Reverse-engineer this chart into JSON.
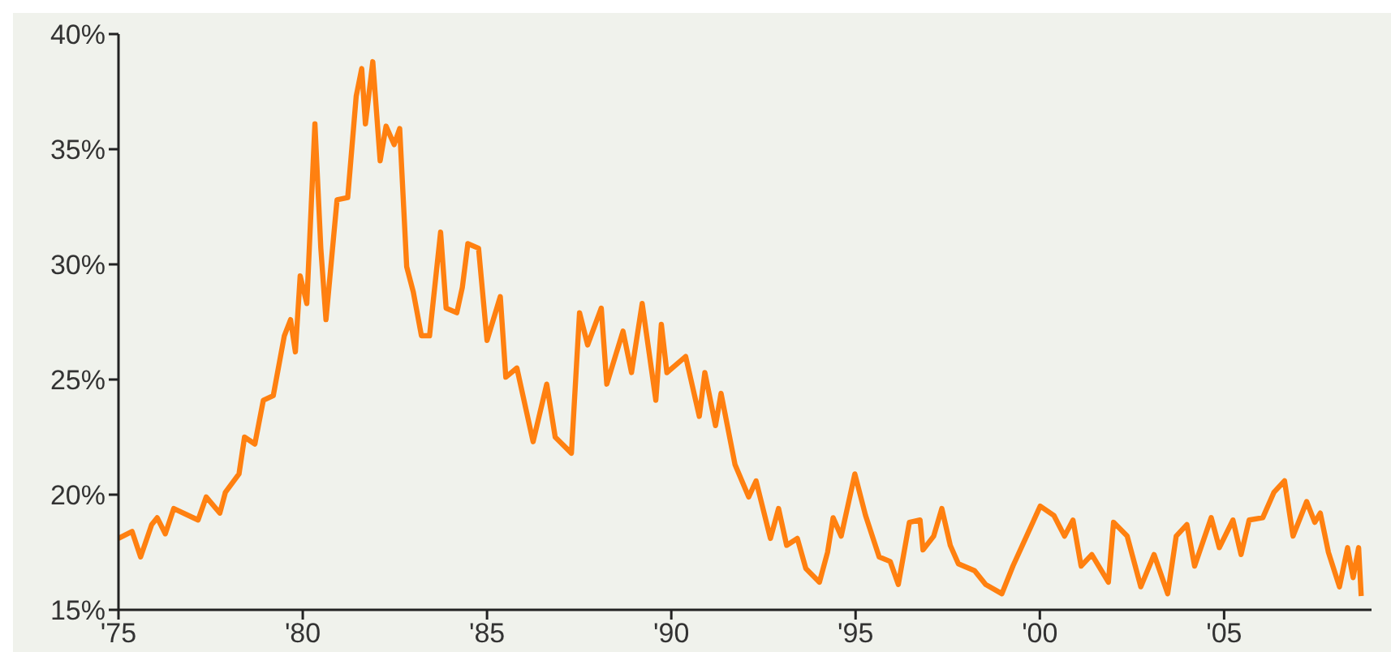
{
  "chart_data": {
    "type": "line",
    "grid": false,
    "marker": "none",
    "line_style": "solid",
    "xlim": [
      1975,
      2009
    ],
    "xticks": [
      {
        "value": 1975,
        "label": "'75"
      },
      {
        "value": 1980,
        "label": "'80"
      },
      {
        "value": 1985,
        "label": "'85"
      },
      {
        "value": 1990,
        "label": "'90"
      },
      {
        "value": 1995,
        "label": "'95"
      },
      {
        "value": 2000,
        "label": "'00"
      },
      {
        "value": 2005,
        "label": "'05"
      }
    ],
    "ylim": [
      15,
      40
    ],
    "yticks": [
      {
        "value": 15,
        "label": "15%"
      },
      {
        "value": 20,
        "label": "20%"
      },
      {
        "value": 25,
        "label": "25%"
      },
      {
        "value": 30,
        "label": "30%"
      },
      {
        "value": 35,
        "label": "35%"
      },
      {
        "value": 40,
        "label": "40%"
      }
    ],
    "series": [
      {
        "color": "#ff8010",
        "x": [
          1975.0,
          1975.37,
          1975.6,
          1975.9,
          1976.05,
          1976.27,
          1976.5,
          1977.16,
          1977.38,
          1977.75,
          1977.9,
          1978.27,
          1978.42,
          1978.7,
          1978.93,
          1979.2,
          1979.5,
          1979.67,
          1979.8,
          1979.93,
          1980.11,
          1980.33,
          1980.49,
          1980.63,
          1980.78,
          1980.93,
          1981.22,
          1981.45,
          1981.6,
          1981.7,
          1981.9,
          1982.1,
          1982.26,
          1982.48,
          1982.63,
          1982.82,
          1983.0,
          1983.22,
          1983.44,
          1983.74,
          1983.89,
          1984.18,
          1984.33,
          1984.48,
          1984.77,
          1985.0,
          1985.36,
          1985.51,
          1985.81,
          1986.25,
          1986.62,
          1986.85,
          1987.29,
          1987.51,
          1987.73,
          1988.1,
          1988.25,
          1988.69,
          1988.92,
          1989.21,
          1989.58,
          1989.73,
          1989.88,
          1990.39,
          1990.76,
          1990.91,
          1991.2,
          1991.35,
          1991.73,
          1992.1,
          1992.3,
          1992.69,
          1992.91,
          1993.13,
          1993.42,
          1993.65,
          1994.02,
          1994.24,
          1994.39,
          1994.61,
          1994.98,
          1995.27,
          1995.64,
          1995.94,
          1996.16,
          1996.46,
          1996.75,
          1996.83,
          1997.12,
          1997.34,
          1997.57,
          1997.79,
          1998.23,
          1998.53,
          1998.97,
          1999.27,
          1999.64,
          2000.01,
          2000.38,
          2000.67,
          2000.9,
          2001.12,
          2001.41,
          2001.86,
          2002.0,
          2002.37,
          2002.74,
          2003.1,
          2003.47,
          2003.7,
          2003.99,
          2004.2,
          2004.65,
          2004.87,
          2005.24,
          2005.46,
          2005.68,
          2006.05,
          2006.35,
          2006.64,
          2006.87,
          2007.24,
          2007.46,
          2007.61,
          2007.83,
          2008.13,
          2008.35,
          2008.5,
          2008.65,
          2008.72
        ],
        "values": [
          18.1,
          18.4,
          17.3,
          18.7,
          19.0,
          18.3,
          19.4,
          18.9,
          19.9,
          19.2,
          20.1,
          20.9,
          22.5,
          22.2,
          24.1,
          24.3,
          26.9,
          27.6,
          26.2,
          29.5,
          28.3,
          36.1,
          30.7,
          27.6,
          30.2,
          32.8,
          32.9,
          37.3,
          38.5,
          36.1,
          38.8,
          34.5,
          36.0,
          35.2,
          35.9,
          29.9,
          28.8,
          26.9,
          26.9,
          31.4,
          28.1,
          27.9,
          29.0,
          30.9,
          30.7,
          26.7,
          28.6,
          25.1,
          25.5,
          22.3,
          24.8,
          22.5,
          21.8,
          27.9,
          26.5,
          28.1,
          24.8,
          27.1,
          25.3,
          28.3,
          24.1,
          27.4,
          25.3,
          26.0,
          23.4,
          25.3,
          23.0,
          24.4,
          21.3,
          19.9,
          20.6,
          18.1,
          19.4,
          17.8,
          18.1,
          16.8,
          16.2,
          17.5,
          19.0,
          18.2,
          20.9,
          19.1,
          17.3,
          17.1,
          16.1,
          18.8,
          18.9,
          17.6,
          18.2,
          19.4,
          17.8,
          17.0,
          16.7,
          16.1,
          15.7,
          16.9,
          18.2,
          19.5,
          19.1,
          18.2,
          18.9,
          16.9,
          17.4,
          16.2,
          18.8,
          18.2,
          16.0,
          17.4,
          15.7,
          18.2,
          18.7,
          16.9,
          19.0,
          17.7,
          18.9,
          17.4,
          18.9,
          19.0,
          20.1,
          20.6,
          18.2,
          19.7,
          18.8,
          19.2,
          17.5,
          16.0,
          17.7,
          16.4,
          17.7,
          15.6
        ]
      }
    ]
  }
}
